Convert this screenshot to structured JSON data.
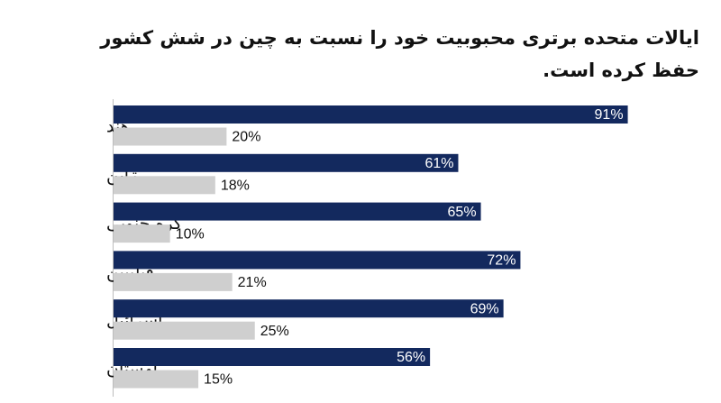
{
  "chart_data": {
    "type": "bar",
    "orientation": "horizontal",
    "title": "ایالات متحده برتری محبوبیت خود را نسبت به چین در شش کشور حفظ کرده است.",
    "categories": [
      "هند",
      "ژاپن",
      "کره جنوبی",
      "فیلیپین",
      "اسرائیل",
      "لهستان"
    ],
    "series": [
      {
        "values": [
          91,
          61,
          65,
          72,
          69,
          56
        ],
        "color": "#13295e"
      },
      {
        "values": [
          20,
          18,
          10,
          21,
          25,
          15
        ],
        "color": "#cfcfcf"
      }
    ],
    "value_suffix": "%",
    "xlim": [
      0,
      100
    ],
    "grid": false,
    "legend": "none"
  }
}
